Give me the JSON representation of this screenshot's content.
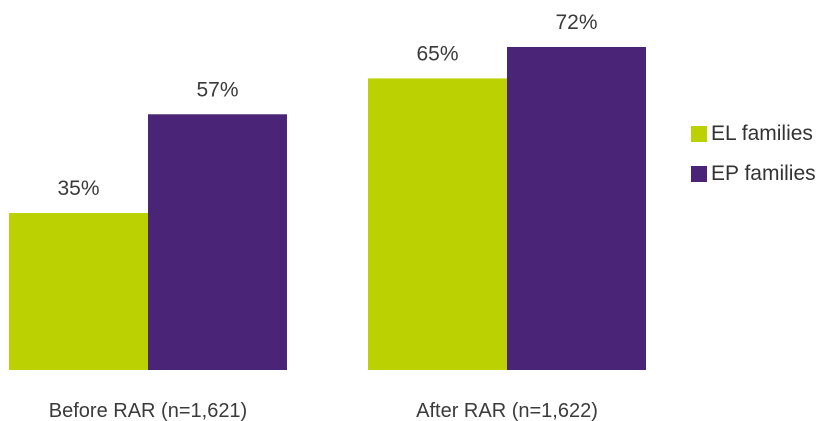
{
  "chart_data": {
    "type": "bar",
    "title": "",
    "xlabel": "",
    "ylabel": "",
    "ylim": [
      0,
      72
    ],
    "grid": false,
    "legend_position": "right",
    "categories": [
      "Before RAR (n=1,621)",
      "After RAR (n=1,622)"
    ],
    "series": [
      {
        "name": "EL families",
        "color": "#bcd101",
        "values": [
          35,
          65
        ],
        "value_labels": [
          "35%",
          "65%"
        ]
      },
      {
        "name": "EP families",
        "color": "#4a2477",
        "values": [
          57,
          72
        ],
        "value_labels": [
          "57%",
          "72%"
        ]
      }
    ]
  }
}
